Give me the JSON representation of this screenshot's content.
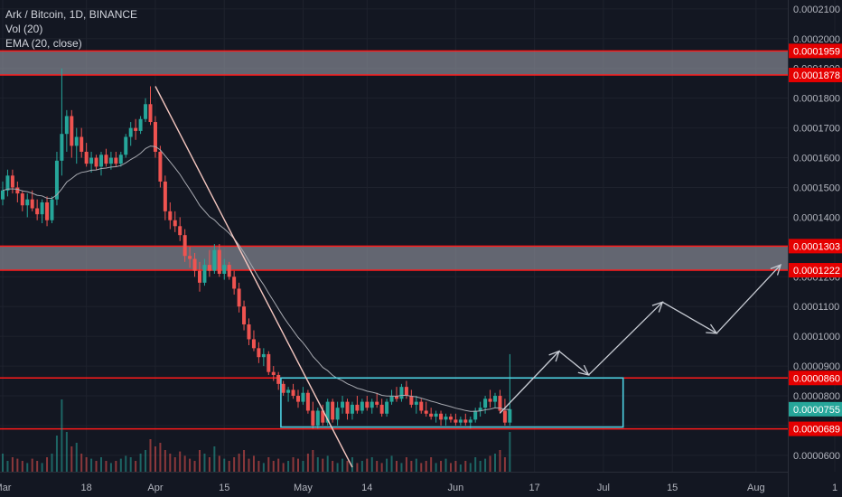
{
  "header": {
    "title": "Ark / Bitcoin, 1D, BINANCE",
    "volume": "Vol (20)",
    "ema": "EMA (20, close)"
  },
  "colors": {
    "background": "#131722",
    "up": "#26a69a",
    "down": "#ef5350",
    "zone_line": "#ff1a1a",
    "zone_fill": "#9598a1",
    "box": "#4dd0e1",
    "arrow": "#c8ccd4",
    "trendline": "#f5c7c0",
    "ema": "#a7a9b0",
    "last_price_bg": "#26a69a"
  },
  "chart_data": {
    "type": "candlestick",
    "symbol": "Ark / Bitcoin",
    "interval": "1D",
    "exchange": "BINANCE",
    "x_ticks": [
      {
        "label": "Mar",
        "day": 0
      },
      {
        "label": "18",
        "day": 17
      },
      {
        "label": "Apr",
        "day": 31
      },
      {
        "label": "15",
        "day": 45
      },
      {
        "label": "May",
        "day": 61
      },
      {
        "label": "14",
        "day": 74
      },
      {
        "label": "Jun",
        "day": 92
      },
      {
        "label": "17",
        "day": 108
      },
      {
        "label": "Jul",
        "day": 122
      },
      {
        "label": "15",
        "day": 136
      },
      {
        "label": "Aug",
        "day": 153
      },
      {
        "label": "1",
        "day": 169
      }
    ],
    "y_ticks": [
      "0.0000600",
      "0.0000700",
      "0.0000800",
      "0.0000900",
      "0.0001000",
      "0.0001100",
      "0.0001200",
      "0.0001300",
      "0.0001400",
      "0.0001500",
      "0.0001600",
      "0.0001700",
      "0.0001800",
      "0.0001900",
      "0.0002000",
      "0.0002100"
    ],
    "ylim": [
      5.45e-05,
      0.000213
    ],
    "price_labels": [
      {
        "value": 0.0001959,
        "text": "0.0001959",
        "kind": "level"
      },
      {
        "value": 0.0001878,
        "text": "0.0001878",
        "kind": "level"
      },
      {
        "value": 0.0001303,
        "text": "0.0001303",
        "kind": "level"
      },
      {
        "value": 0.0001222,
        "text": "0.0001222",
        "kind": "level"
      },
      {
        "value": 8.6e-05,
        "text": "0.0000860",
        "kind": "level"
      },
      {
        "value": 7.55e-05,
        "text": "0.0000755",
        "kind": "last"
      },
      {
        "value": 6.89e-05,
        "text": "0.0000689",
        "kind": "level"
      }
    ],
    "resistance_zones": [
      {
        "top": 0.0001959,
        "bottom": 0.0001878
      },
      {
        "top": 0.0001303,
        "bottom": 0.0001222
      }
    ],
    "single_levels": [
      8.6e-05,
      6.89e-05
    ],
    "consolidation_box": {
      "day_start": 56.5,
      "day_end": 126,
      "top": 8.6e-05,
      "bottom": 6.95e-05
    },
    "trendline": {
      "day_start": 31,
      "value_start": 0.000184,
      "day_end": 71,
      "value_end": 5.6e-05
    },
    "projection_arrows": [
      [
        {
          "day": 101,
          "value": 7.42e-05
        },
        {
          "day": 113,
          "value": 9.5e-05
        }
      ],
      [
        {
          "day": 113,
          "value": 9.5e-05
        },
        {
          "day": 119,
          "value": 8.7e-05
        }
      ],
      [
        {
          "day": 119,
          "value": 8.7e-05
        },
        {
          "day": 134,
          "value": 0.0001115
        }
      ],
      [
        {
          "day": 134,
          "value": 0.0001115
        },
        {
          "day": 145,
          "value": 0.000101
        }
      ],
      [
        {
          "day": 145,
          "value": 0.000101
        },
        {
          "day": 158,
          "value": 0.000124
        }
      ]
    ],
    "candles": [
      [
        0.000146,
        0.000152,
        0.000144,
        0.000149
      ],
      [
        0.000149,
        0.000156,
        0.000147,
        0.000154
      ],
      [
        0.000154,
        0.000156,
        0.000148,
        0.00015
      ],
      [
        0.00015,
        0.000152,
        0.000145,
        0.000148
      ],
      [
        0.000148,
        0.000149,
        0.000142,
        0.000144
      ],
      [
        0.000144,
        0.000148,
        0.00014,
        0.000146
      ],
      [
        0.000146,
        0.000149,
        0.000142,
        0.000143
      ],
      [
        0.000143,
        0.000146,
        0.000139,
        0.000141
      ],
      [
        0.000141,
        0.000146,
        0.000138,
        0.000145
      ],
      [
        0.000145,
        0.000147,
        0.000137,
        0.000139
      ],
      [
        0.000139,
        0.000147,
        0.000138,
        0.000146
      ],
      [
        0.000146,
        0.000162,
        0.000144,
        0.000159
      ],
      [
        0.000159,
        0.00019,
        0.000154,
        0.000168
      ],
      [
        0.000168,
        0.000176,
        0.000162,
        0.000174
      ],
      [
        0.000174,
        0.000176,
        0.00016,
        0.000164
      ],
      [
        0.000164,
        0.00017,
        0.000158,
        0.000167
      ],
      [
        0.000167,
        0.00017,
        0.00016,
        0.000162
      ],
      [
        0.000162,
        0.000165,
        0.000157,
        0.000158
      ],
      [
        0.000158,
        0.000162,
        0.000155,
        0.00016
      ],
      [
        0.00016,
        0.000161,
        0.000156,
        0.000157
      ],
      [
        0.000157,
        0.000162,
        0.000154,
        0.000161
      ],
      [
        0.000161,
        0.000163,
        0.000157,
        0.000158
      ],
      [
        0.000158,
        0.000162,
        0.000156,
        0.00016
      ],
      [
        0.00016,
        0.000162,
        0.000157,
        0.000158
      ],
      [
        0.000158,
        0.000162,
        0.000157,
        0.000161
      ],
      [
        0.000161,
        0.000168,
        0.00016,
        0.000167
      ],
      [
        0.000167,
        0.000172,
        0.000164,
        0.00017
      ],
      [
        0.00017,
        0.000173,
        0.000166,
        0.000169
      ],
      [
        0.000169,
        0.000174,
        0.000168,
        0.000173
      ],
      [
        0.000173,
        0.00018,
        0.000172,
        0.000178
      ],
      [
        0.000178,
        0.000184,
        0.000171,
        0.000172
      ],
      [
        0.000172,
        0.000174,
        0.00016,
        0.000162
      ],
      [
        0.000162,
        0.000164,
        0.00015,
        0.000152
      ],
      [
        0.000152,
        0.000154,
        0.000139,
        0.000142
      ],
      [
        0.000142,
        0.000145,
        0.000136,
        0.000139
      ],
      [
        0.000139,
        0.000142,
        0.000135,
        0.000137
      ],
      [
        0.000137,
        0.00014,
        0.000132,
        0.000134
      ],
      [
        0.000134,
        0.000136,
        0.000125,
        0.000127
      ],
      [
        0.000127,
        0.00013,
        0.000123,
        0.000126
      ],
      [
        0.000126,
        0.000128,
        0.00012,
        0.000122
      ],
      [
        0.000122,
        0.000125,
        0.000115,
        0.000118
      ],
      [
        0.000118,
        0.000126,
        0.000117,
        0.000124
      ],
      [
        0.000124,
        0.000129,
        0.00012,
        0.000122
      ],
      [
        0.000122,
        0.000131,
        0.000121,
        0.000129
      ],
      [
        0.000129,
        0.000131,
        0.00012,
        0.000121
      ],
      [
        0.000121,
        0.000126,
        0.000119,
        0.000124
      ],
      [
        0.000124,
        0.000125,
        0.000119,
        0.00012
      ],
      [
        0.00012,
        0.000122,
        0.000114,
        0.000116
      ],
      [
        0.000116,
        0.000118,
        0.000108,
        0.00011
      ],
      [
        0.00011,
        0.000112,
        0.000102,
        0.000104
      ],
      [
        0.000104,
        0.000106,
        9.7e-05,
        9.9e-05
      ],
      [
        9.9e-05,
        0.000102,
        9.5e-05,
        9.6e-05
      ],
      [
        9.6e-05,
        9.8e-05,
        9.1e-05,
        9.3e-05
      ],
      [
        9.3e-05,
        9.6e-05,
        9e-05,
        9.4e-05
      ],
      [
        9.4e-05,
        9.5e-05,
        8.7e-05,
        8.8e-05
      ],
      [
        8.8e-05,
        9e-05,
        8.5e-05,
        8.7e-05
      ],
      [
        8.7e-05,
        8.8e-05,
        8.2e-05,
        8.4e-05
      ],
      [
        8.4e-05,
        8.5e-05,
        8e-05,
        8.1e-05
      ],
      [
        8.1e-05,
        8.3e-05,
        7.8e-05,
        8.2e-05
      ],
      [
        8.2e-05,
        8.4e-05,
        7.9e-05,
        8e-05
      ],
      [
        8e-05,
        8.2e-05,
        7.6e-05,
        7.8e-05
      ],
      [
        7.8e-05,
        8.3e-05,
        7.7e-05,
        8.1e-05
      ],
      [
        8.1e-05,
        8.2e-05,
        7.4e-05,
        7.5e-05
      ],
      [
        7.5e-05,
        7.8e-05,
        6.9e-05,
        7e-05
      ],
      [
        7e-05,
        7.6e-05,
        6.9e-05,
        7.5e-05
      ],
      [
        7.5e-05,
        7.7e-05,
        7e-05,
        7.1e-05
      ],
      [
        7.1e-05,
        7.9e-05,
        7e-05,
        7.8e-05
      ],
      [
        7.8e-05,
        7.9e-05,
        7.1e-05,
        7.2e-05
      ],
      [
        7.2e-05,
        7.8e-05,
        7e-05,
        7.6e-05
      ],
      [
        7.6e-05,
        8e-05,
        7.4e-05,
        7.8e-05
      ],
      [
        7.8e-05,
        7.9e-05,
        7.2e-05,
        7.4e-05
      ],
      [
        7.4e-05,
        7.8e-05,
        7.2e-05,
        7.7e-05
      ],
      [
        7.7e-05,
        8e-05,
        7.4e-05,
        7.5e-05
      ],
      [
        7.5e-05,
        7.9e-05,
        7.4e-05,
        7.8e-05
      ],
      [
        7.8e-05,
        8e-05,
        7.5e-05,
        7.6e-05
      ],
      [
        7.6e-05,
        7.9e-05,
        7.4e-05,
        7.8e-05
      ],
      [
        7.8e-05,
        8.1e-05,
        7.6e-05,
        7.7e-05
      ],
      [
        7.7e-05,
        7.9e-05,
        7.3e-05,
        7.4e-05
      ],
      [
        7.4e-05,
        7.9e-05,
        7.3e-05,
        7.8e-05
      ],
      [
        7.8e-05,
        8.2e-05,
        7.7e-05,
        8e-05
      ],
      [
        8e-05,
        8.3e-05,
        7.8e-05,
        7.9e-05
      ],
      [
        7.9e-05,
        8.4e-05,
        7.8e-05,
        8.3e-05
      ],
      [
        8.3e-05,
        8.5e-05,
        7.9e-05,
        8e-05
      ],
      [
        8e-05,
        8.2e-05,
        7.6e-05,
        7.7e-05
      ],
      [
        7.7e-05,
        8e-05,
        7.4e-05,
        7.8e-05
      ],
      [
        7.8e-05,
        7.9e-05,
        7.4e-05,
        7.5e-05
      ],
      [
        7.5e-05,
        7.8e-05,
        7.3e-05,
        7.4e-05
      ],
      [
        7.4e-05,
        7.6e-05,
        7.2e-05,
        7.3e-05
      ],
      [
        7.3e-05,
        7.5e-05,
        7.1e-05,
        7.4e-05
      ],
      [
        7.4e-05,
        7.5e-05,
        7e-05,
        7.2e-05
      ],
      [
        7.2e-05,
        7.4e-05,
        7e-05,
        7.3e-05
      ],
      [
        7.3e-05,
        7.4e-05,
        7.1e-05,
        7.2e-05
      ],
      [
        7.2e-05,
        7.4e-05,
        7e-05,
        7.1e-05
      ],
      [
        7.1e-05,
        7.3e-05,
        7e-05,
        7.2e-05
      ],
      [
        7.2e-05,
        7.4e-05,
        7e-05,
        7.1e-05
      ],
      [
        7.1e-05,
        7.3e-05,
        6.9e-05,
        7.2e-05
      ],
      [
        7.2e-05,
        7.6e-05,
        7.1e-05,
        7.5e-05
      ],
      [
        7.5e-05,
        7.8e-05,
        7.3e-05,
        7.6e-05
      ],
      [
        7.6e-05,
        8e-05,
        7.4e-05,
        7.9e-05
      ],
      [
        7.9e-05,
        8.2e-05,
        7.6e-05,
        7.8e-05
      ],
      [
        7.8e-05,
        8.1e-05,
        7.6e-05,
        8e-05
      ],
      [
        8e-05,
        8.2e-05,
        7.4e-05,
        7.5e-05
      ],
      [
        7.5e-05,
        7.9e-05,
        7e-05,
        7.1e-05
      ],
      [
        7.1e-05,
        9.4e-05,
        7e-05,
        7.55e-05
      ]
    ],
    "volumes": [
      0.25,
      0.15,
      0.2,
      0.18,
      0.15,
      0.12,
      0.18,
      0.15,
      0.12,
      0.2,
      0.25,
      0.5,
      1.0,
      0.55,
      0.35,
      0.4,
      0.25,
      0.2,
      0.18,
      0.15,
      0.2,
      0.15,
      0.12,
      0.15,
      0.18,
      0.22,
      0.2,
      0.15,
      0.25,
      0.3,
      0.45,
      0.35,
      0.4,
      0.3,
      0.25,
      0.2,
      0.28,
      0.22,
      0.18,
      0.15,
      0.3,
      0.25,
      0.2,
      0.35,
      0.22,
      0.18,
      0.15,
      0.2,
      0.25,
      0.3,
      0.18,
      0.22,
      0.15,
      0.12,
      0.2,
      0.15,
      0.18,
      0.12,
      0.15,
      0.2,
      0.18,
      0.15,
      0.25,
      0.3,
      0.2,
      0.18,
      0.22,
      0.15,
      0.12,
      0.18,
      0.15,
      0.2,
      0.12,
      0.15,
      0.18,
      0.2,
      0.15,
      0.12,
      0.18,
      0.22,
      0.15,
      0.12,
      0.2,
      0.15,
      0.18,
      0.12,
      0.15,
      0.2,
      0.12,
      0.15,
      0.18,
      0.12,
      0.15,
      0.1,
      0.15,
      0.12,
      0.2,
      0.15,
      0.18,
      0.22,
      0.25,
      0.3,
      0.2,
      0.55
    ]
  }
}
